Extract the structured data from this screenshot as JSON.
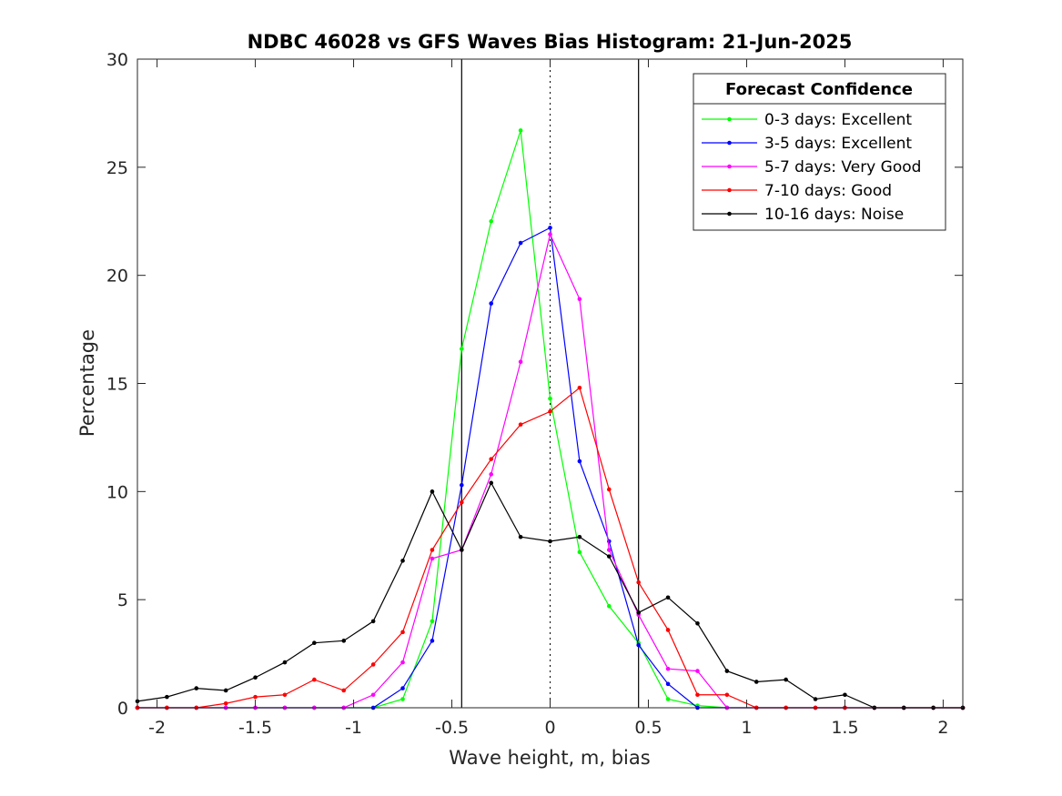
{
  "chart_data": {
    "type": "line",
    "title": "NDBC 46028 vs GFS Waves Bias Histogram: 21-Jun-2025",
    "xlabel": "Wave height, m, bias",
    "ylabel": "Percentage",
    "xlim": [
      -2.1,
      2.1
    ],
    "ylim": [
      0,
      30
    ],
    "xticks": [
      -2,
      -1.5,
      -1,
      -0.5,
      0,
      0.5,
      1,
      1.5,
      2
    ],
    "xtick_labels": [
      "-2",
      "-1.5",
      "-1",
      "-0.5",
      "0",
      "0.5",
      "1",
      "1.5",
      "2"
    ],
    "yticks": [
      0,
      5,
      10,
      15,
      20,
      25,
      30
    ],
    "ytick_labels": [
      "0",
      "5",
      "10",
      "15",
      "20",
      "25",
      "30"
    ],
    "grid": false,
    "vertical_lines": [
      {
        "x": -0.45,
        "style": "solid",
        "color": "#000000"
      },
      {
        "x": 0,
        "style": "dotted",
        "color": "#000000"
      },
      {
        "x": 0.45,
        "style": "solid",
        "color": "#000000"
      }
    ],
    "legend": {
      "title": "Forecast Confidence",
      "placement": "top-right"
    },
    "x": [
      -2.1,
      -1.95,
      -1.8,
      -1.65,
      -1.5,
      -1.35,
      -1.2,
      -1.05,
      -0.9,
      -0.75,
      -0.6,
      -0.45,
      -0.3,
      -0.15,
      0,
      0.15,
      0.3,
      0.45,
      0.6,
      0.75,
      0.9,
      1.05,
      1.2,
      1.35,
      1.5,
      1.65,
      1.8,
      1.95,
      2.1
    ],
    "series": [
      {
        "name": "0-3 days: Excellent",
        "color": "#00ff00",
        "values": [
          0,
          0,
          0,
          0,
          0,
          0,
          0,
          0,
          0,
          0.4,
          4.0,
          16.6,
          22.5,
          26.7,
          14.3,
          7.2,
          4.7,
          3.0,
          0.4,
          0.1,
          0,
          0,
          0,
          0,
          0,
          0,
          0,
          0,
          0
        ]
      },
      {
        "name": "3-5 days: Excellent",
        "color": "#0000ff",
        "values": [
          0,
          0,
          0,
          0,
          0,
          0,
          0,
          0,
          0,
          0.9,
          3.1,
          10.3,
          18.7,
          21.5,
          22.2,
          11.4,
          7.7,
          2.9,
          1.1,
          0,
          0,
          0,
          0,
          0,
          0,
          0,
          0,
          0,
          0
        ]
      },
      {
        "name": "5-7 days: Very Good",
        "color": "#ff00ff",
        "values": [
          0,
          0,
          0,
          0,
          0,
          0,
          0,
          0,
          0.6,
          2.1,
          6.9,
          7.3,
          10.8,
          16.0,
          21.9,
          18.9,
          7.3,
          4.3,
          1.8,
          1.7,
          0,
          0,
          0,
          0,
          0,
          0,
          0,
          0,
          0
        ]
      },
      {
        "name": "7-10 days: Good",
        "color": "#ff0000",
        "values": [
          0,
          0,
          0,
          0.2,
          0.5,
          0.6,
          1.3,
          0.8,
          2.0,
          3.5,
          7.3,
          9.5,
          11.5,
          13.1,
          13.7,
          14.8,
          10.1,
          5.8,
          3.6,
          0.6,
          0.6,
          0,
          0,
          0,
          0,
          0,
          0,
          0,
          0
        ]
      },
      {
        "name": "10-16 days: Noise",
        "color": "#000000",
        "values": [
          0.3,
          0.5,
          0.9,
          0.8,
          1.4,
          2.1,
          3.0,
          3.1,
          4.0,
          6.8,
          10.0,
          7.3,
          10.4,
          7.9,
          7.7,
          7.9,
          7.0,
          4.4,
          5.1,
          3.9,
          1.7,
          1.2,
          1.3,
          0.4,
          0.6,
          0,
          0,
          0,
          0
        ]
      }
    ]
  }
}
